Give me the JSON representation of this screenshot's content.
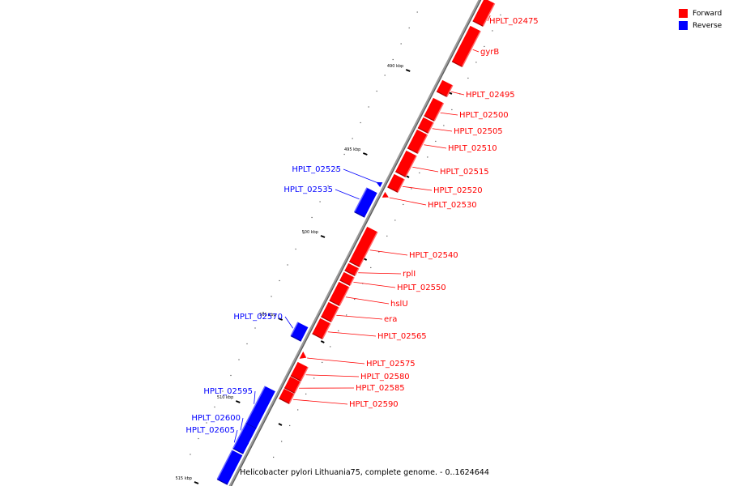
{
  "caption": "Helicobacter pylori Lithuania75, complete genome. - 0..1624644",
  "legend": {
    "items": [
      {
        "label": "Forward",
        "color": "#ff0000"
      },
      {
        "label": "Reverse",
        "color": "#0000ff"
      }
    ]
  },
  "colors": {
    "forward": "#ff0000",
    "reverse": "#0000ff",
    "axis": "#888888"
  },
  "ticks": [
    {
      "label": "490 kbp",
      "position_kbp": 490
    },
    {
      "label": "495 kbp",
      "position_kbp": 495
    },
    {
      "label": "500 kbp",
      "position_kbp": 500
    },
    {
      "label": "505 kbp",
      "position_kbp": 505
    },
    {
      "label": "510 kbp",
      "position_kbp": 510
    },
    {
      "label": "515 kbp",
      "position_kbp": 515
    }
  ],
  "genes": [
    {
      "name": "HPLT_02475",
      "strand": "forward"
    },
    {
      "name": "gyrB",
      "strand": "forward"
    },
    {
      "name": "HPLT_02495",
      "strand": "forward"
    },
    {
      "name": "HPLT_02500",
      "strand": "forward"
    },
    {
      "name": "HPLT_02505",
      "strand": "forward"
    },
    {
      "name": "HPLT_02510",
      "strand": "forward"
    },
    {
      "name": "HPLT_02515",
      "strand": "forward"
    },
    {
      "name": "HPLT_02520",
      "strand": "forward"
    },
    {
      "name": "HPLT_02530",
      "strand": "forward"
    },
    {
      "name": "HPLT_02525",
      "strand": "reverse"
    },
    {
      "name": "HPLT_02535",
      "strand": "reverse"
    },
    {
      "name": "HPLT_02540",
      "strand": "forward"
    },
    {
      "name": "rplI",
      "strand": "forward"
    },
    {
      "name": "HPLT_02550",
      "strand": "forward"
    },
    {
      "name": "hslU",
      "strand": "forward"
    },
    {
      "name": "era",
      "strand": "forward"
    },
    {
      "name": "HPLT_02565",
      "strand": "forward"
    },
    {
      "name": "HPLT_02570",
      "strand": "reverse"
    },
    {
      "name": "HPLT_02575",
      "strand": "forward"
    },
    {
      "name": "HPLT_02580",
      "strand": "forward"
    },
    {
      "name": "HPLT_02585",
      "strand": "forward"
    },
    {
      "name": "HPLT_02590",
      "strand": "forward"
    },
    {
      "name": "HPLT_02595",
      "strand": "reverse"
    },
    {
      "name": "HPLT_02600",
      "strand": "reverse"
    },
    {
      "name": "HPLT_02605",
      "strand": "reverse"
    }
  ]
}
